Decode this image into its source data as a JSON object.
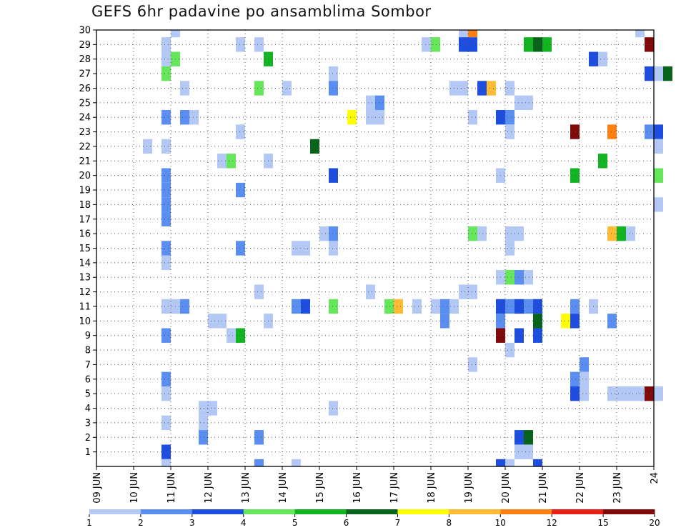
{
  "chart_data": {
    "type": "heatmap",
    "title": "GEFS 6hr padavine po ansamblima Sombor",
    "xlabel": "",
    "ylabel": "",
    "x_ticks": [
      "09 JUN",
      "10 JUN",
      "11 JUN",
      "12 JUN",
      "13 JUN",
      "14 JUN",
      "15 JUN",
      "16 JUN",
      "17 JUN",
      "18 JUN",
      "19 JUN",
      "20 JUN",
      "21 JUN",
      "22 JUN",
      "23 JUN",
      "24"
    ],
    "x_range_days": [
      0,
      15
    ],
    "y_ticks": [
      1,
      2,
      3,
      4,
      5,
      6,
      7,
      8,
      9,
      10,
      11,
      12,
      13,
      14,
      15,
      16,
      17,
      18,
      19,
      20,
      21,
      22,
      23,
      24,
      25,
      26,
      27,
      28,
      29,
      30
    ],
    "y_range": [
      0,
      30
    ],
    "grid": true,
    "legend_position": "bottom",
    "color_scale": {
      "levels": [
        "1",
        "2",
        "3",
        "4",
        "5",
        "6",
        "7",
        "8",
        "10",
        "12",
        "15",
        "20"
      ],
      "colors": [
        "#b4c8f5",
        "#5a8ef0",
        "#1e4ee0",
        "#66e65a",
        "#12b422",
        "#08641a",
        "#ffff00",
        "#ffbb33",
        "#ff7f10",
        "#e62014",
        "#800a0a"
      ]
    },
    "cells": [
      [
        2.0,
        30,
        0
      ],
      [
        9.75,
        30,
        0
      ],
      [
        10.0,
        30,
        8
      ],
      [
        14.5,
        30,
        0
      ],
      [
        1.75,
        29,
        0
      ],
      [
        1.75,
        28,
        0
      ],
      [
        2.0,
        28,
        3
      ],
      [
        1.75,
        27,
        3
      ],
      [
        3.75,
        29,
        0
      ],
      [
        4.25,
        29,
        0
      ],
      [
        4.5,
        28,
        4
      ],
      [
        8.75,
        29,
        0
      ],
      [
        9.0,
        29,
        3
      ],
      [
        9.75,
        29,
        2
      ],
      [
        10.0,
        29,
        2
      ],
      [
        11.5,
        29,
        4
      ],
      [
        11.75,
        29,
        5
      ],
      [
        12.0,
        29,
        4
      ],
      [
        14.75,
        29,
        10
      ],
      [
        13.25,
        28,
        2
      ],
      [
        13.5,
        28,
        0
      ],
      [
        14.75,
        27,
        2
      ],
      [
        15.0,
        27,
        0
      ],
      [
        2.25,
        26,
        0
      ],
      [
        4.25,
        26,
        3
      ],
      [
        5.0,
        26,
        0
      ],
      [
        6.25,
        27,
        0
      ],
      [
        6.25,
        26,
        1
      ],
      [
        7.25,
        25,
        0
      ],
      [
        7.5,
        25,
        1
      ],
      [
        9.5,
        26,
        0
      ],
      [
        9.75,
        26,
        0
      ],
      [
        10.25,
        26,
        2
      ],
      [
        10.5,
        26,
        7
      ],
      [
        11.0,
        26,
        0
      ],
      [
        11.25,
        25,
        0
      ],
      [
        11.5,
        25,
        0
      ],
      [
        15.25,
        27,
        5
      ],
      [
        1.75,
        24,
        1
      ],
      [
        2.25,
        24,
        1
      ],
      [
        2.5,
        24,
        0
      ],
      [
        6.75,
        24,
        6
      ],
      [
        7.25,
        24,
        0
      ],
      [
        7.5,
        24,
        0
      ],
      [
        10.0,
        24,
        0
      ],
      [
        10.75,
        24,
        2
      ],
      [
        11.0,
        24,
        1
      ],
      [
        3.75,
        23,
        0
      ],
      [
        11.0,
        23,
        0
      ],
      [
        12.75,
        23,
        10
      ],
      [
        13.75,
        23,
        8
      ],
      [
        14.75,
        23,
        1
      ],
      [
        15.0,
        23,
        2
      ],
      [
        1.25,
        22,
        0
      ],
      [
        1.75,
        22,
        0
      ],
      [
        5.75,
        22,
        5
      ],
      [
        15.0,
        22,
        0
      ],
      [
        3.25,
        21,
        0
      ],
      [
        3.5,
        21,
        3
      ],
      [
        4.5,
        21,
        0
      ],
      [
        13.5,
        21,
        4
      ],
      [
        1.75,
        20,
        1
      ],
      [
        6.25,
        20,
        2
      ],
      [
        10.75,
        20,
        0
      ],
      [
        12.75,
        20,
        4
      ],
      [
        15.0,
        20,
        3
      ],
      [
        1.75,
        19,
        1
      ],
      [
        3.75,
        19,
        1
      ],
      [
        1.75,
        18,
        1
      ],
      [
        1.75,
        17,
        1
      ],
      [
        15.0,
        18,
        0
      ],
      [
        6.0,
        16,
        0
      ],
      [
        6.25,
        16,
        1
      ],
      [
        10.0,
        16,
        3
      ],
      [
        10.25,
        16,
        0
      ],
      [
        11.0,
        16,
        0
      ],
      [
        11.25,
        16,
        0
      ],
      [
        13.75,
        16,
        7
      ],
      [
        14.0,
        16,
        4
      ],
      [
        14.25,
        16,
        0
      ],
      [
        1.75,
        15,
        1
      ],
      [
        3.75,
        15,
        1
      ],
      [
        5.25,
        15,
        0
      ],
      [
        5.5,
        15,
        0
      ],
      [
        6.25,
        15,
        0
      ],
      [
        11.0,
        15,
        0
      ],
      [
        1.75,
        14,
        0
      ],
      [
        10.75,
        13,
        0
      ],
      [
        11.0,
        13,
        3
      ],
      [
        11.25,
        13,
        1
      ],
      [
        11.5,
        13,
        0
      ],
      [
        4.25,
        12,
        0
      ],
      [
        7.25,
        12,
        0
      ],
      [
        9.75,
        12,
        0
      ],
      [
        10.0,
        12,
        0
      ],
      [
        1.75,
        11,
        0
      ],
      [
        2.0,
        11,
        0
      ],
      [
        2.25,
        11,
        1
      ],
      [
        5.25,
        11,
        1
      ],
      [
        5.5,
        11,
        2
      ],
      [
        6.25,
        11,
        3
      ],
      [
        7.75,
        11,
        3
      ],
      [
        8.0,
        11,
        7
      ],
      [
        8.5,
        11,
        0
      ],
      [
        9.0,
        11,
        0
      ],
      [
        9.25,
        11,
        1
      ],
      [
        9.5,
        11,
        0
      ],
      [
        10.75,
        11,
        2
      ],
      [
        11.0,
        11,
        1
      ],
      [
        11.25,
        11,
        2
      ],
      [
        11.5,
        11,
        1
      ],
      [
        11.75,
        11,
        2
      ],
      [
        12.75,
        11,
        1
      ],
      [
        13.25,
        11,
        0
      ],
      [
        3.0,
        10,
        0
      ],
      [
        3.25,
        10,
        0
      ],
      [
        4.5,
        10,
        0
      ],
      [
        9.25,
        10,
        1
      ],
      [
        10.75,
        10,
        1
      ],
      [
        11.75,
        10,
        5
      ],
      [
        12.5,
        10,
        6
      ],
      [
        12.75,
        10,
        2
      ],
      [
        13.75,
        10,
        1
      ],
      [
        1.75,
        9,
        1
      ],
      [
        3.5,
        9,
        0
      ],
      [
        3.75,
        9,
        4
      ],
      [
        10.75,
        9,
        10
      ],
      [
        11.25,
        9,
        2
      ],
      [
        11.75,
        9,
        2
      ],
      [
        11.0,
        8,
        0
      ],
      [
        10.0,
        7,
        0
      ],
      [
        13.0,
        7,
        1
      ],
      [
        1.75,
        6,
        1
      ],
      [
        12.75,
        6,
        1
      ],
      [
        13.0,
        6,
        0
      ],
      [
        1.75,
        5,
        0
      ],
      [
        12.75,
        5,
        2
      ],
      [
        13.0,
        5,
        0
      ],
      [
        13.75,
        5,
        0
      ],
      [
        14.0,
        5,
        0
      ],
      [
        14.25,
        5,
        0
      ],
      [
        14.5,
        5,
        0
      ],
      [
        14.75,
        5,
        10
      ],
      [
        15.0,
        5,
        0
      ],
      [
        2.75,
        4,
        0
      ],
      [
        3.0,
        4,
        0
      ],
      [
        6.25,
        4,
        0
      ],
      [
        1.75,
        3,
        0
      ],
      [
        2.75,
        3,
        0
      ],
      [
        2.75,
        2,
        1
      ],
      [
        4.25,
        2,
        1
      ],
      [
        11.25,
        2,
        2
      ],
      [
        11.5,
        2,
        5
      ],
      [
        1.75,
        1,
        2
      ],
      [
        11.25,
        1,
        0
      ],
      [
        11.5,
        1,
        0
      ],
      [
        1.75,
        0,
        0
      ],
      [
        4.25,
        0,
        1
      ],
      [
        5.25,
        0,
        0
      ],
      [
        10.75,
        0,
        2
      ],
      [
        11.0,
        0,
        0
      ],
      [
        11.75,
        0,
        2
      ]
    ]
  }
}
